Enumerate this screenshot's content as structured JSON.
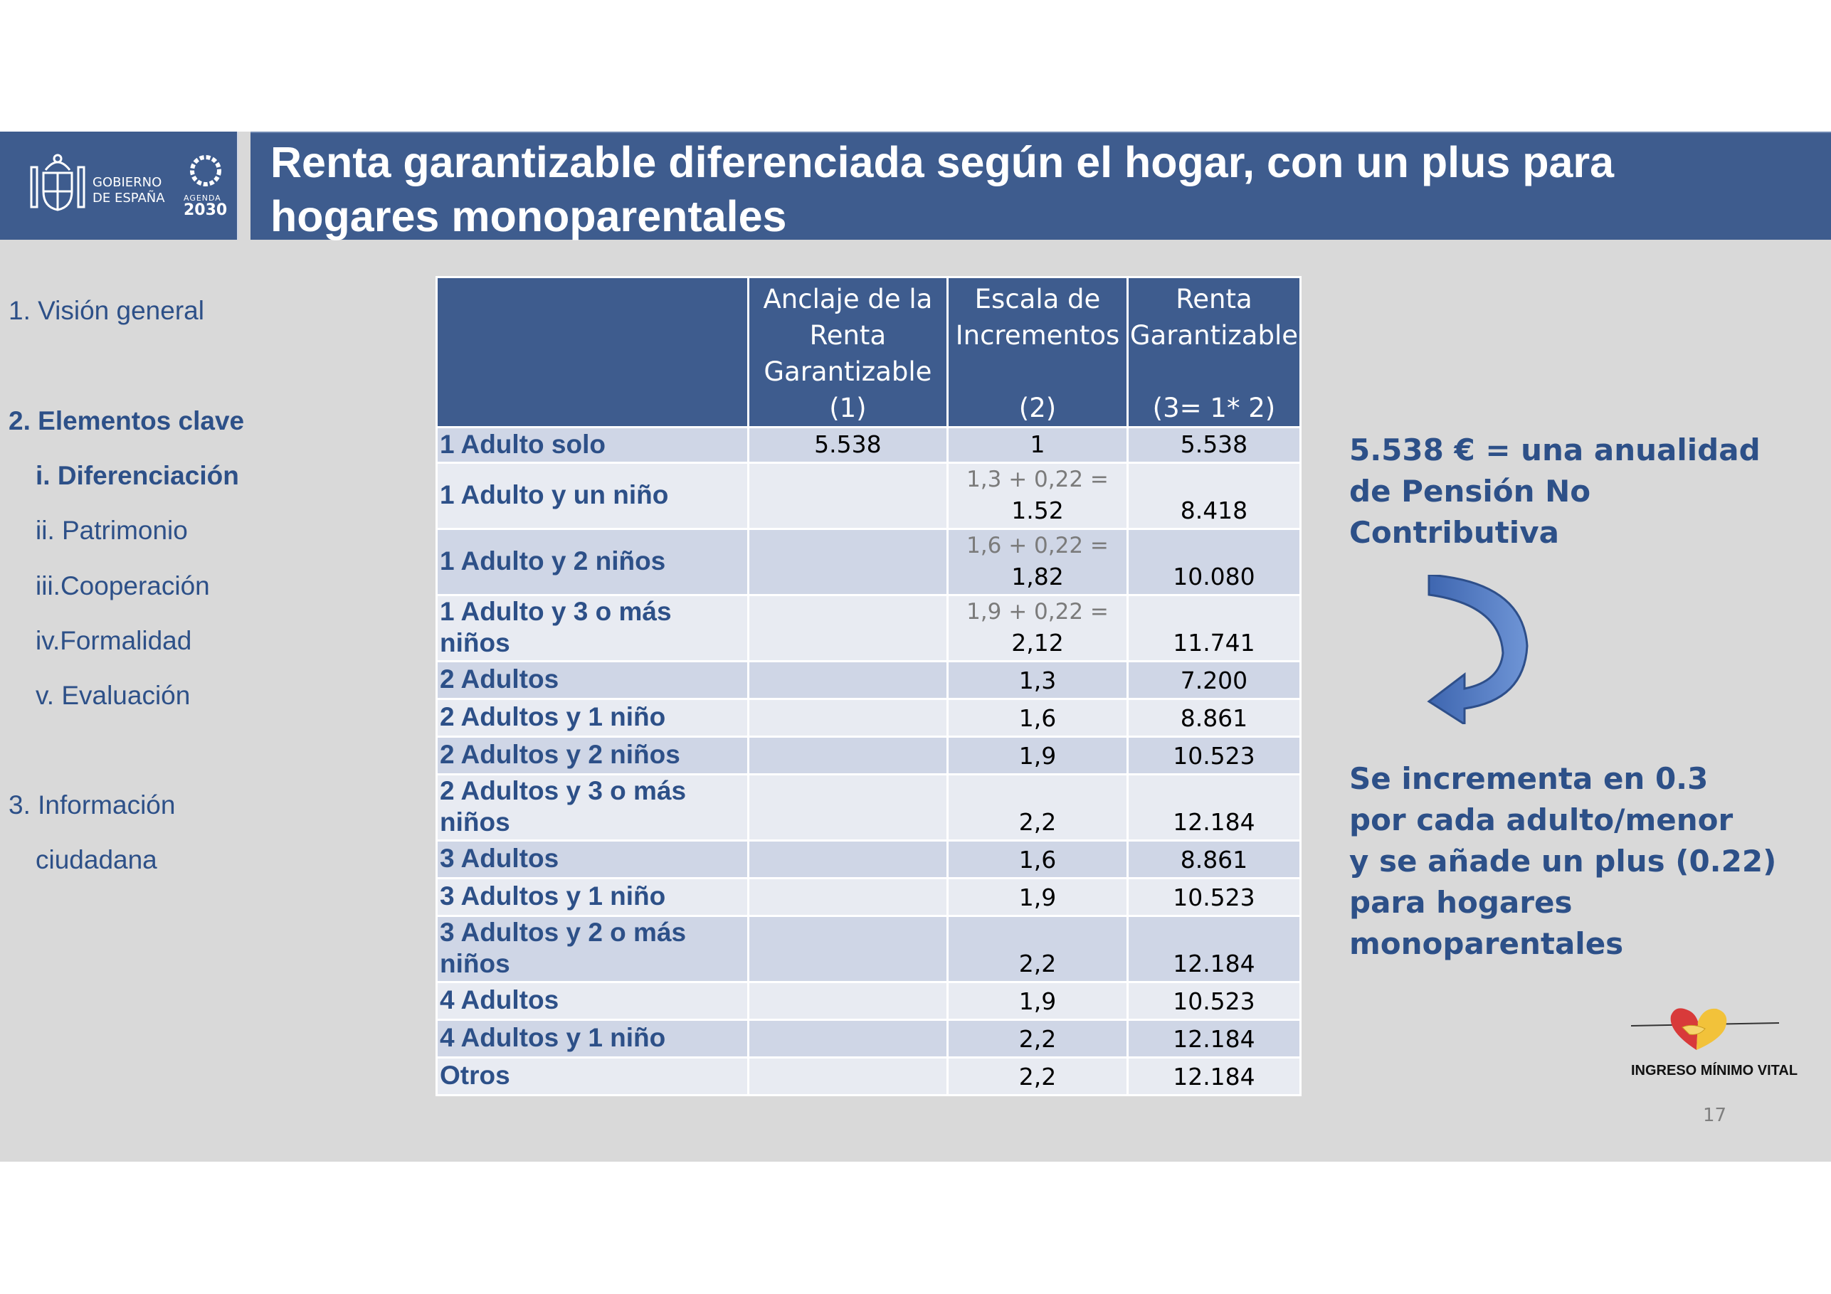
{
  "header": {
    "gov_line1": "GOBIERNO",
    "gov_line2": "DE ESPAÑA",
    "agenda_label": "AGENDA",
    "agenda_year": "2030",
    "title_line1": "Renta garantizable diferenciada según el hogar, con un plus para",
    "title_line2": "hogares monoparentales"
  },
  "sidebar": {
    "items": [
      {
        "label": "1. Visión general"
      },
      {
        "label": "2. Elementos clave"
      },
      {
        "label": "i.  Diferenciación"
      },
      {
        "label": "ii. Patrimonio"
      },
      {
        "label": "iii.Cooperación"
      },
      {
        "label": "iv.Formalidad"
      },
      {
        "label": "v. Evaluación"
      },
      {
        "label": "3. Información"
      },
      {
        "label": "ciudadana"
      }
    ]
  },
  "table": {
    "headers": [
      {
        "text": "Anclaje de la Renta Garantizable",
        "num": "(1)"
      },
      {
        "text": "Escala de Incrementos",
        "num": "(2)"
      },
      {
        "text": "Renta Garantizable",
        "num": "(3= 1* 2)"
      }
    ],
    "rows": [
      {
        "label": "1 Adulto solo",
        "anclaje": "5.538",
        "formula": "",
        "escala": "1",
        "renta": "5.538"
      },
      {
        "label": "1 Adulto y un niño",
        "anclaje": "",
        "formula": "1,3 + 0,22 =",
        "escala": "1.52",
        "renta": "8.418"
      },
      {
        "label": "1 Adulto y 2 niños",
        "anclaje": "",
        "formula": "1,6 + 0,22 =",
        "escala": "1,82",
        "renta": "10.080"
      },
      {
        "label": "1 Adulto y 3 o más niños",
        "anclaje": "",
        "formula": "1,9 + 0,22 =",
        "escala": "2,12",
        "renta": "11.741"
      },
      {
        "label": "2 Adultos",
        "anclaje": "",
        "formula": "",
        "escala": "1,3",
        "renta": "7.200"
      },
      {
        "label": "2 Adultos y 1 niño",
        "anclaje": "",
        "formula": "",
        "escala": "1,6",
        "renta": "8.861"
      },
      {
        "label": "2 Adultos y 2 niños",
        "anclaje": "",
        "formula": "",
        "escala": "1,9",
        "renta": "10.523"
      },
      {
        "label": "2 Adultos y 3 o más niños",
        "anclaje": "",
        "formula": "",
        "escala": "2,2",
        "renta": "12.184"
      },
      {
        "label": "3 Adultos",
        "anclaje": "",
        "formula": "",
        "escala": "1,6",
        "renta": "8.861"
      },
      {
        "label": "3 Adultos y 1 niño",
        "anclaje": "",
        "formula": "",
        "escala": "1,9",
        "renta": "10.523"
      },
      {
        "label": "3 Adultos y 2  o más niños",
        "anclaje": "",
        "formula": "",
        "escala": "2,2",
        "renta": "12.184"
      },
      {
        "label": "4 Adultos",
        "anclaje": "",
        "formula": "",
        "escala": "1,9",
        "renta": "10.523"
      },
      {
        "label": "4 Adultos y 1 niño",
        "anclaje": "",
        "formula": "",
        "escala": "2,2",
        "renta": "12.184"
      },
      {
        "label": "Otros",
        "anclaje": "",
        "formula": "",
        "escala": "2,2",
        "renta": "12.184"
      }
    ]
  },
  "notes": {
    "top_line1": "5.538 € = una anualidad",
    "top_line2": "de Pensión No",
    "top_line3": "Contributiva",
    "bottom_line1": "Se incrementa en 0.3",
    "bottom_line2": "por cada adulto/menor",
    "bottom_line3": "y se añade un plus (0.22)",
    "bottom_line4": "para hogares",
    "bottom_line5": "monoparentales"
  },
  "footer": {
    "logo_text": "INGRESO MÍNIMO VITAL",
    "page_number": "17"
  },
  "colors": {
    "header_blue": "#3e5c8e",
    "text_blue": "#2d5088",
    "row_dark": "#cfd6e6",
    "row_light": "#e8ebf2",
    "background": "#d9d9d9"
  }
}
